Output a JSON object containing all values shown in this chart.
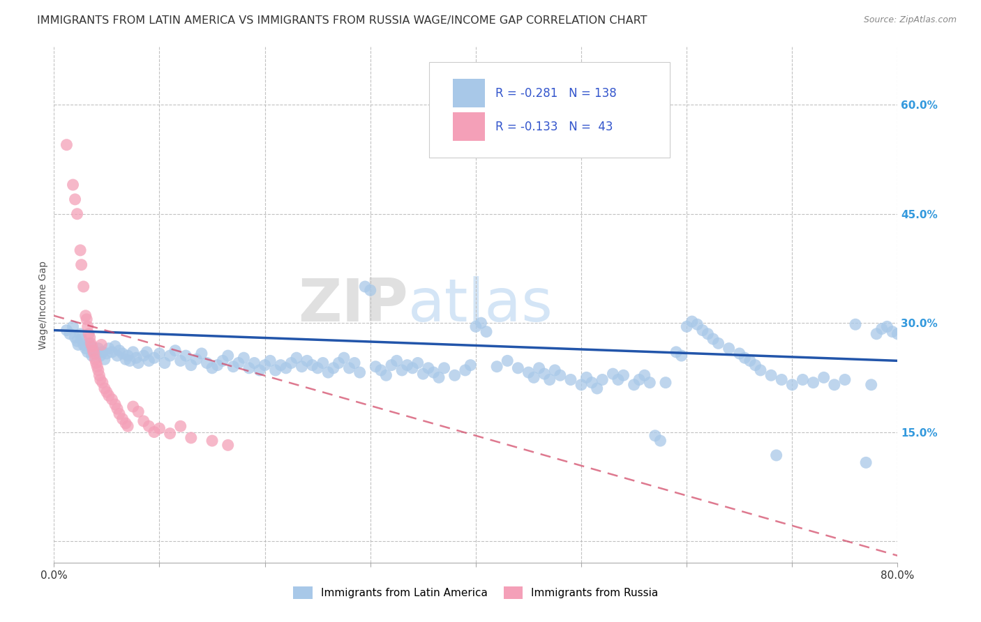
{
  "title": "IMMIGRANTS FROM LATIN AMERICA VS IMMIGRANTS FROM RUSSIA WAGE/INCOME GAP CORRELATION CHART",
  "source": "Source: ZipAtlas.com",
  "ylabel": "Wage/Income Gap",
  "yticks": [
    0.0,
    0.15,
    0.3,
    0.45,
    0.6
  ],
  "ytick_labels": [
    "",
    "15.0%",
    "30.0%",
    "45.0%",
    "60.0%"
  ],
  "xlim": [
    0.0,
    0.8
  ],
  "ylim": [
    -0.03,
    0.68
  ],
  "legend_r_blue": "-0.281",
  "legend_n_blue": "138",
  "legend_r_pink": "-0.133",
  "legend_n_pink": " 43",
  "series_blue": {
    "color": "#A8C8E8",
    "trend_color": "#2255AA",
    "trend_x": [
      0.0,
      0.8
    ],
    "trend_y": [
      0.29,
      0.248
    ],
    "points": [
      [
        0.012,
        0.29
      ],
      [
        0.015,
        0.285
      ],
      [
        0.018,
        0.295
      ],
      [
        0.02,
        0.28
      ],
      [
        0.022,
        0.275
      ],
      [
        0.023,
        0.27
      ],
      [
        0.025,
        0.285
      ],
      [
        0.026,
        0.278
      ],
      [
        0.028,
        0.27
      ],
      [
        0.03,
        0.265
      ],
      [
        0.032,
        0.26
      ],
      [
        0.033,
        0.272
      ],
      [
        0.035,
        0.268
      ],
      [
        0.036,
        0.255
      ],
      [
        0.038,
        0.262
      ],
      [
        0.04,
        0.258
      ],
      [
        0.042,
        0.265
      ],
      [
        0.044,
        0.255
      ],
      [
        0.046,
        0.26
      ],
      [
        0.048,
        0.25
      ],
      [
        0.05,
        0.258
      ],
      [
        0.052,
        0.265
      ],
      [
        0.055,
        0.26
      ],
      [
        0.058,
        0.268
      ],
      [
        0.06,
        0.255
      ],
      [
        0.062,
        0.262
      ],
      [
        0.065,
        0.258
      ],
      [
        0.068,
        0.25
      ],
      [
        0.07,
        0.255
      ],
      [
        0.072,
        0.248
      ],
      [
        0.075,
        0.26
      ],
      [
        0.078,
        0.252
      ],
      [
        0.08,
        0.245
      ],
      [
        0.085,
        0.255
      ],
      [
        0.088,
        0.26
      ],
      [
        0.09,
        0.248
      ],
      [
        0.095,
        0.252
      ],
      [
        0.1,
        0.258
      ],
      [
        0.105,
        0.245
      ],
      [
        0.11,
        0.255
      ],
      [
        0.115,
        0.262
      ],
      [
        0.12,
        0.248
      ],
      [
        0.125,
        0.255
      ],
      [
        0.13,
        0.242
      ],
      [
        0.135,
        0.25
      ],
      [
        0.14,
        0.258
      ],
      [
        0.145,
        0.245
      ],
      [
        0.15,
        0.238
      ],
      [
        0.155,
        0.242
      ],
      [
        0.16,
        0.248
      ],
      [
        0.165,
        0.255
      ],
      [
        0.17,
        0.24
      ],
      [
        0.175,
        0.245
      ],
      [
        0.18,
        0.252
      ],
      [
        0.185,
        0.238
      ],
      [
        0.19,
        0.245
      ],
      [
        0.195,
        0.235
      ],
      [
        0.2,
        0.242
      ],
      [
        0.205,
        0.248
      ],
      [
        0.21,
        0.235
      ],
      [
        0.215,
        0.242
      ],
      [
        0.22,
        0.238
      ],
      [
        0.225,
        0.245
      ],
      [
        0.23,
        0.252
      ],
      [
        0.235,
        0.24
      ],
      [
        0.24,
        0.248
      ],
      [
        0.245,
        0.242
      ],
      [
        0.25,
        0.238
      ],
      [
        0.255,
        0.245
      ],
      [
        0.26,
        0.232
      ],
      [
        0.265,
        0.238
      ],
      [
        0.27,
        0.245
      ],
      [
        0.275,
        0.252
      ],
      [
        0.28,
        0.238
      ],
      [
        0.285,
        0.245
      ],
      [
        0.29,
        0.232
      ],
      [
        0.295,
        0.35
      ],
      [
        0.3,
        0.345
      ],
      [
        0.305,
        0.24
      ],
      [
        0.31,
        0.235
      ],
      [
        0.315,
        0.228
      ],
      [
        0.32,
        0.242
      ],
      [
        0.325,
        0.248
      ],
      [
        0.33,
        0.235
      ],
      [
        0.335,
        0.242
      ],
      [
        0.34,
        0.238
      ],
      [
        0.345,
        0.245
      ],
      [
        0.35,
        0.23
      ],
      [
        0.355,
        0.238
      ],
      [
        0.36,
        0.232
      ],
      [
        0.365,
        0.225
      ],
      [
        0.37,
        0.238
      ],
      [
        0.38,
        0.228
      ],
      [
        0.39,
        0.235
      ],
      [
        0.395,
        0.242
      ],
      [
        0.4,
        0.295
      ],
      [
        0.405,
        0.3
      ],
      [
        0.41,
        0.288
      ],
      [
        0.42,
        0.24
      ],
      [
        0.43,
        0.248
      ],
      [
        0.44,
        0.238
      ],
      [
        0.45,
        0.232
      ],
      [
        0.455,
        0.225
      ],
      [
        0.46,
        0.238
      ],
      [
        0.465,
        0.23
      ],
      [
        0.47,
        0.222
      ],
      [
        0.475,
        0.235
      ],
      [
        0.48,
        0.228
      ],
      [
        0.49,
        0.222
      ],
      [
        0.5,
        0.215
      ],
      [
        0.505,
        0.225
      ],
      [
        0.51,
        0.218
      ],
      [
        0.515,
        0.21
      ],
      [
        0.52,
        0.222
      ],
      [
        0.53,
        0.23
      ],
      [
        0.535,
        0.222
      ],
      [
        0.54,
        0.228
      ],
      [
        0.55,
        0.215
      ],
      [
        0.555,
        0.222
      ],
      [
        0.56,
        0.228
      ],
      [
        0.565,
        0.218
      ],
      [
        0.57,
        0.145
      ],
      [
        0.575,
        0.138
      ],
      [
        0.58,
        0.218
      ],
      [
        0.59,
        0.26
      ],
      [
        0.595,
        0.255
      ],
      [
        0.6,
        0.295
      ],
      [
        0.605,
        0.302
      ],
      [
        0.61,
        0.298
      ],
      [
        0.615,
        0.29
      ],
      [
        0.62,
        0.285
      ],
      [
        0.625,
        0.278
      ],
      [
        0.63,
        0.272
      ],
      [
        0.64,
        0.265
      ],
      [
        0.65,
        0.258
      ],
      [
        0.655,
        0.252
      ],
      [
        0.66,
        0.248
      ],
      [
        0.665,
        0.242
      ],
      [
        0.67,
        0.235
      ],
      [
        0.68,
        0.228
      ],
      [
        0.685,
        0.118
      ],
      [
        0.69,
        0.222
      ],
      [
        0.7,
        0.215
      ],
      [
        0.71,
        0.222
      ],
      [
        0.72,
        0.218
      ],
      [
        0.73,
        0.225
      ],
      [
        0.74,
        0.215
      ],
      [
        0.75,
        0.222
      ],
      [
        0.76,
        0.298
      ],
      [
        0.77,
        0.108
      ],
      [
        0.775,
        0.215
      ],
      [
        0.78,
        0.285
      ],
      [
        0.785,
        0.292
      ],
      [
        0.79,
        0.295
      ],
      [
        0.795,
        0.288
      ],
      [
        0.8,
        0.285
      ]
    ]
  },
  "series_pink": {
    "color": "#F4A0B8",
    "trend_color": "#D04060",
    "trend_x": [
      0.0,
      0.8
    ],
    "trend_y": [
      0.31,
      -0.02
    ],
    "points": [
      [
        0.012,
        0.545
      ],
      [
        0.018,
        0.49
      ],
      [
        0.02,
        0.47
      ],
      [
        0.022,
        0.45
      ],
      [
        0.025,
        0.4
      ],
      [
        0.026,
        0.38
      ],
      [
        0.028,
        0.35
      ],
      [
        0.03,
        0.31
      ],
      [
        0.031,
        0.305
      ],
      [
        0.032,
        0.295
      ],
      [
        0.033,
        0.285
      ],
      [
        0.034,
        0.28
      ],
      [
        0.035,
        0.272
      ],
      [
        0.036,
        0.268
      ],
      [
        0.037,
        0.262
      ],
      [
        0.038,
        0.258
      ],
      [
        0.039,
        0.25
      ],
      [
        0.04,
        0.245
      ],
      [
        0.041,
        0.24
      ],
      [
        0.042,
        0.235
      ],
      [
        0.043,
        0.228
      ],
      [
        0.044,
        0.222
      ],
      [
        0.045,
        0.27
      ],
      [
        0.046,
        0.218
      ],
      [
        0.048,
        0.21
      ],
      [
        0.05,
        0.205
      ],
      [
        0.052,
        0.2
      ],
      [
        0.055,
        0.195
      ],
      [
        0.058,
        0.188
      ],
      [
        0.06,
        0.182
      ],
      [
        0.062,
        0.175
      ],
      [
        0.065,
        0.168
      ],
      [
        0.068,
        0.162
      ],
      [
        0.07,
        0.158
      ],
      [
        0.075,
        0.185
      ],
      [
        0.08,
        0.178
      ],
      [
        0.085,
        0.165
      ],
      [
        0.09,
        0.158
      ],
      [
        0.095,
        0.15
      ],
      [
        0.1,
        0.155
      ],
      [
        0.11,
        0.148
      ],
      [
        0.12,
        0.158
      ],
      [
        0.13,
        0.142
      ],
      [
        0.15,
        0.138
      ],
      [
        0.165,
        0.132
      ]
    ]
  },
  "watermark_zip": "ZIP",
  "watermark_atlas": "atlas",
  "bg_color": "#FFFFFF",
  "grid_color": "#CCCCCC",
  "title_fontsize": 11.5,
  "tick_fontsize": 11
}
